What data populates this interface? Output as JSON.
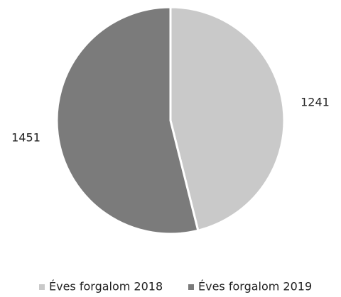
{
  "chart_data": {
    "type": "pie",
    "categories": [
      "Éves forgalom 2018",
      "Éves forgalom 2019"
    ],
    "values": [
      1241,
      1451
    ],
    "colors": [
      "#c9c9c9",
      "#7b7b7b"
    ],
    "legend": "bottom"
  }
}
